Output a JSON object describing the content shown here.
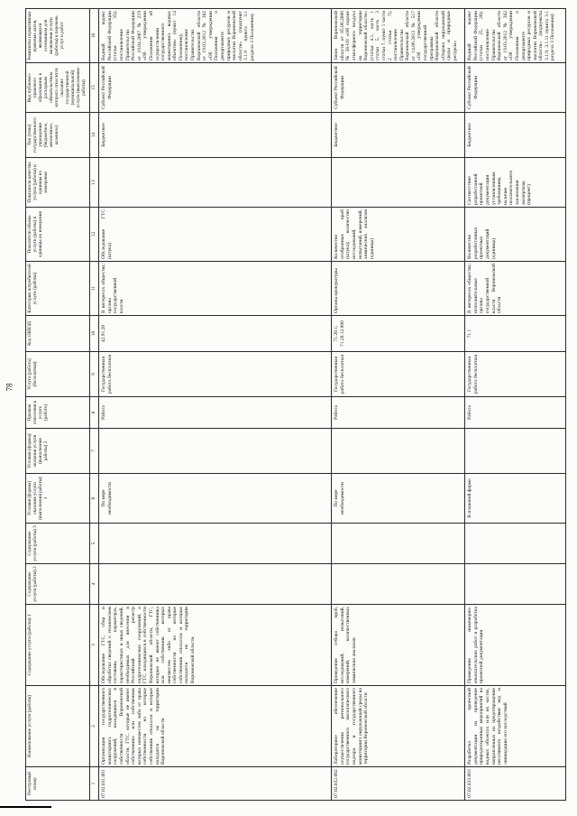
{
  "page": {
    "number": "78"
  },
  "table": {
    "headers": [
      "Реестровый номер",
      "Наименование услуги (работы)",
      "Содержание услуги (работы) 1",
      "Содержание услуги (работы) 2",
      "Содержание услуги (работы) 3",
      "Условия (формы) оказания услуги (выполнения работы) 1",
      "Условия (формы) оказания услуги (выполнения работы) 2",
      "Признак отнесения к услуге (работе)",
      "Услуга (работа) (бесплатная)",
      "Код ОКВЭД",
      "Категории потребителей услуги (работы)",
      "Показатели объема услуги (работы) и единицы их измерения",
      "Показатели качества услуги (работы) и единицы их измерения",
      "Тип (тема) государственного учреждения (бюджетное, автономное, казенное)",
      "Вид публично-правового образования, к расходным обязательствам которого относится оказание государственной (муниципальной) услуги (выполнение работы)",
      "Реквизиты нормативных правовых актов, являющихся основанием для включения услуги (работы) в перечень услуг и работ"
    ],
    "column_numbers": [
      "1",
      "2",
      "3",
      "4",
      "5",
      "6",
      "7",
      "8",
      "9",
      "10",
      "11",
      "12",
      "13",
      "14",
      "15",
      "16"
    ],
    "rows": [
      {
        "cells": [
          "07.02.031.001",
          "Организация государственного мониторинга гидротехнических сооружений, находящихся в собственности Воронежской области, ГТС, которые не имеют собственника или собственник которых неизвестен либо от права собственности на которые собственник отказался и которые находятся на территории Воронежской области",
          "Обследование ГТС, сбор и обработка сведений о техническом состоянии, параметрах, характеристиках и иных сведений, необходимых для внесения в Российский регистр гидротехнических сооружений, о ГТС, находящихся в собственности Воронежской области, ГТС, которые не имеют собственника или собственник которых неизвестен либо от права собственности на которые собственник отказался и которые находятся на территории Воронежской области",
          "",
          "",
          "По мере необходимости",
          "",
          "Работа",
          "Государственная работа бесплатная",
          "42.91.20",
          "В интересах общества; органы государственной власти",
          "Обследование ГТС (штука)",
          "",
          "Бюджетное",
          "Субъект Российской Федерации",
          "Водный кодекс Российской Федерации (статья 35); постановление Правительства Российской Федерации от 10.04.2007 № 219 «Об утверждении Положения об осуществлении государственного мониторинга водных объектов» (пункт 14 Положения); постановление Правительства Воронежской области от 19.03.2012 № 382 «Об утверждении Положения о департаменте природных ресурсов и экологии Воронежской области» (подпункт 3.1.9 пункта 3.1 раздела 3 Положения)"
        ]
      },
      {
        "cells": [
          "07.02.032.002",
          "Лабораторное обеспечение осуществления регионального государственного экологического надзора и государственного мониторинга окружающей среды на территории Воронежской области",
          "Проведение отбора проб, исследований, испытаний, измерений, количественных химических анализов",
          "",
          "",
          "По мере необходимости",
          "",
          "Работа",
          "Государственная работа бесплатная",
          "71.20.1; 71.20.12.000",
          "Органы прокуратуры",
          "Количество отобранных проб (штука); количество исследований, испытаний, измерений, химических анализов (единица)",
          "",
          "Бюджетное",
          "Субъект Российской Федерации",
          "Закон Воронежской области от 05.06.2006 № 56-ОЗ «Об охране атмосферного воздуха на территории Воронежской области» (статья 4.1, часть 1 статьи 5, часть 3 статьи 7, пункт 1 части 2 статьи 7); постановление Правительства Воронежской области от 14.06.2013 № 517 «Об утверждении государственной программы Воронежской области «Охрана окружающей среды и природные ресурсы»"
        ]
      },
      {
        "cells": [
          "07.02.033.003",
          "Разработка проектной документации на проведение природоохранных мероприятий на водных объектах или их частях, направленных на предотвращение негативного воздействия вод и ликвидацию его последствий",
          "Проведение инженерно-изыскательских работ и разработка проектной документации",
          "",
          "",
          "В плановой форме",
          "",
          "Работа",
          "Государственная работа бесплатная",
          "71.1",
          "В интересах общества; исполнительные органы государственной власти Воронежской области",
          "Количество разработанных проектных документаций (единица)",
          "Соответствие разработанной проектной документации установленным требованиям, наличие положительного заключения экспертизы (процент)",
          "Бюджетное",
          "Субъект Российской Федерации",
          "Водный кодекс Российской Федерации (статьи 25, 26); постановление Правительства Воронежской области от 19.03.2012 № 382 «Об утверждении Положения о департаменте природных ресурсов и экологии Воронежской области» (подпункты 3.1.9, 3.1.11 пункта 3.1 раздела 3 Положения)"
        ]
      }
    ]
  }
}
